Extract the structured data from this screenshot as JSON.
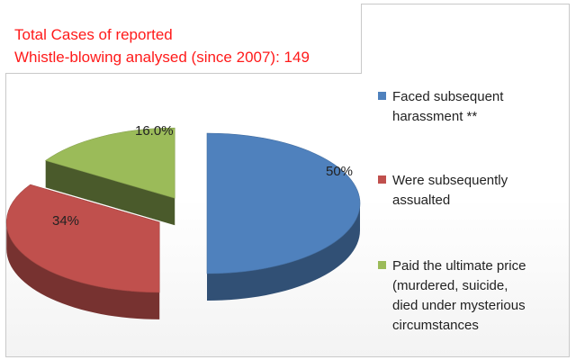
{
  "title": {
    "line1": "Total Cases of reported",
    "line2": "Whistle-blowing analysed (since 2007): 149"
  },
  "colors": {
    "title": "#ff1a1a",
    "blue": "#4f81bd",
    "red": "#c0504d",
    "green": "#9bbb59"
  },
  "chart_data": {
    "type": "pie",
    "style": "3d-exploded",
    "title": "Total Cases of reported Whistle-blowing analysed (since 2007): 149",
    "slices": [
      {
        "label": "Faced subsequent harassment **",
        "value": 50,
        "data_label": "50%",
        "color": "#4f81bd"
      },
      {
        "label": "Were subsequently assualted",
        "value": 34,
        "data_label": "34%",
        "color": "#c0504d"
      },
      {
        "label": "Paid the ultimate price (murdered, suicide, died under mysterious circumstances",
        "value": 16,
        "data_label": "16.0%",
        "color": "#9bbb59"
      }
    ],
    "legend_position": "right"
  },
  "legend": [
    {
      "text": "Faced subsequent\nharassment **"
    },
    {
      "text": "Were subsequently\nassualted"
    },
    {
      "text": "Paid the ultimate price\n(murdered, suicide,\ndied under mysterious\ncircumstances"
    }
  ]
}
